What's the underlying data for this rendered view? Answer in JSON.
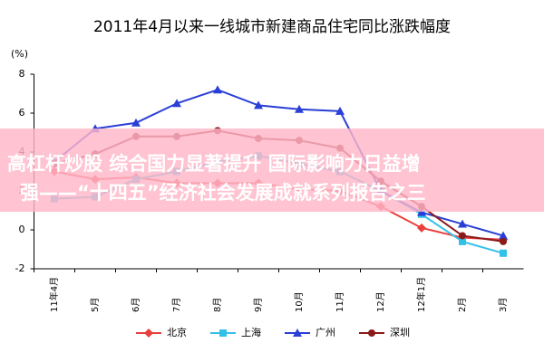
{
  "chart_data": {
    "type": "line",
    "title": "2011年4月以来一线城市新建商品住宅同比涨跌幅度",
    "y_unit": "(%)",
    "categories": [
      "11年4月",
      "5月",
      "6月",
      "7月",
      "8月",
      "9月",
      "10月",
      "11月",
      "12月",
      "12年1月",
      "2月",
      "3月"
    ],
    "series": [
      {
        "name": "北京",
        "color": "#e8403c",
        "marker": "diamond",
        "values": [
          3.0,
          2.6,
          2.7,
          2.4,
          2.4,
          2.4,
          2.1,
          2.0,
          1.2,
          0.1,
          -0.4,
          -0.5
        ]
      },
      {
        "name": "上海",
        "color": "#33c0e8",
        "marker": "square",
        "values": [
          1.6,
          1.7,
          2.6,
          3.0,
          3.5,
          3.8,
          3.4,
          3.0,
          2.0,
          0.8,
          -0.6,
          -1.2
        ]
      },
      {
        "name": "广州",
        "color": "#2a3fd6",
        "marker": "triangle",
        "values": [
          3.5,
          5.2,
          5.5,
          6.5,
          7.2,
          6.4,
          6.2,
          6.1,
          2.0,
          0.9,
          0.3,
          -0.3
        ]
      },
      {
        "name": "深圳",
        "color": "#8b1a1a",
        "marker": "circle",
        "values": [
          3.4,
          3.9,
          4.8,
          4.8,
          5.1,
          4.7,
          4.6,
          4.2,
          2.5,
          1.2,
          -0.3,
          -0.6
        ]
      }
    ],
    "ylim": [
      -2,
      8
    ],
    "yticks": [
      -2,
      0,
      2,
      4,
      6,
      8
    ],
    "grid": false,
    "legend": "bottom"
  },
  "overlay": {
    "lines": [
      "高杠杆炒股 综合国力显著提升 国际影响力日益增",
      "强——“十四五”经济社会发展成就系列报告之三"
    ]
  }
}
